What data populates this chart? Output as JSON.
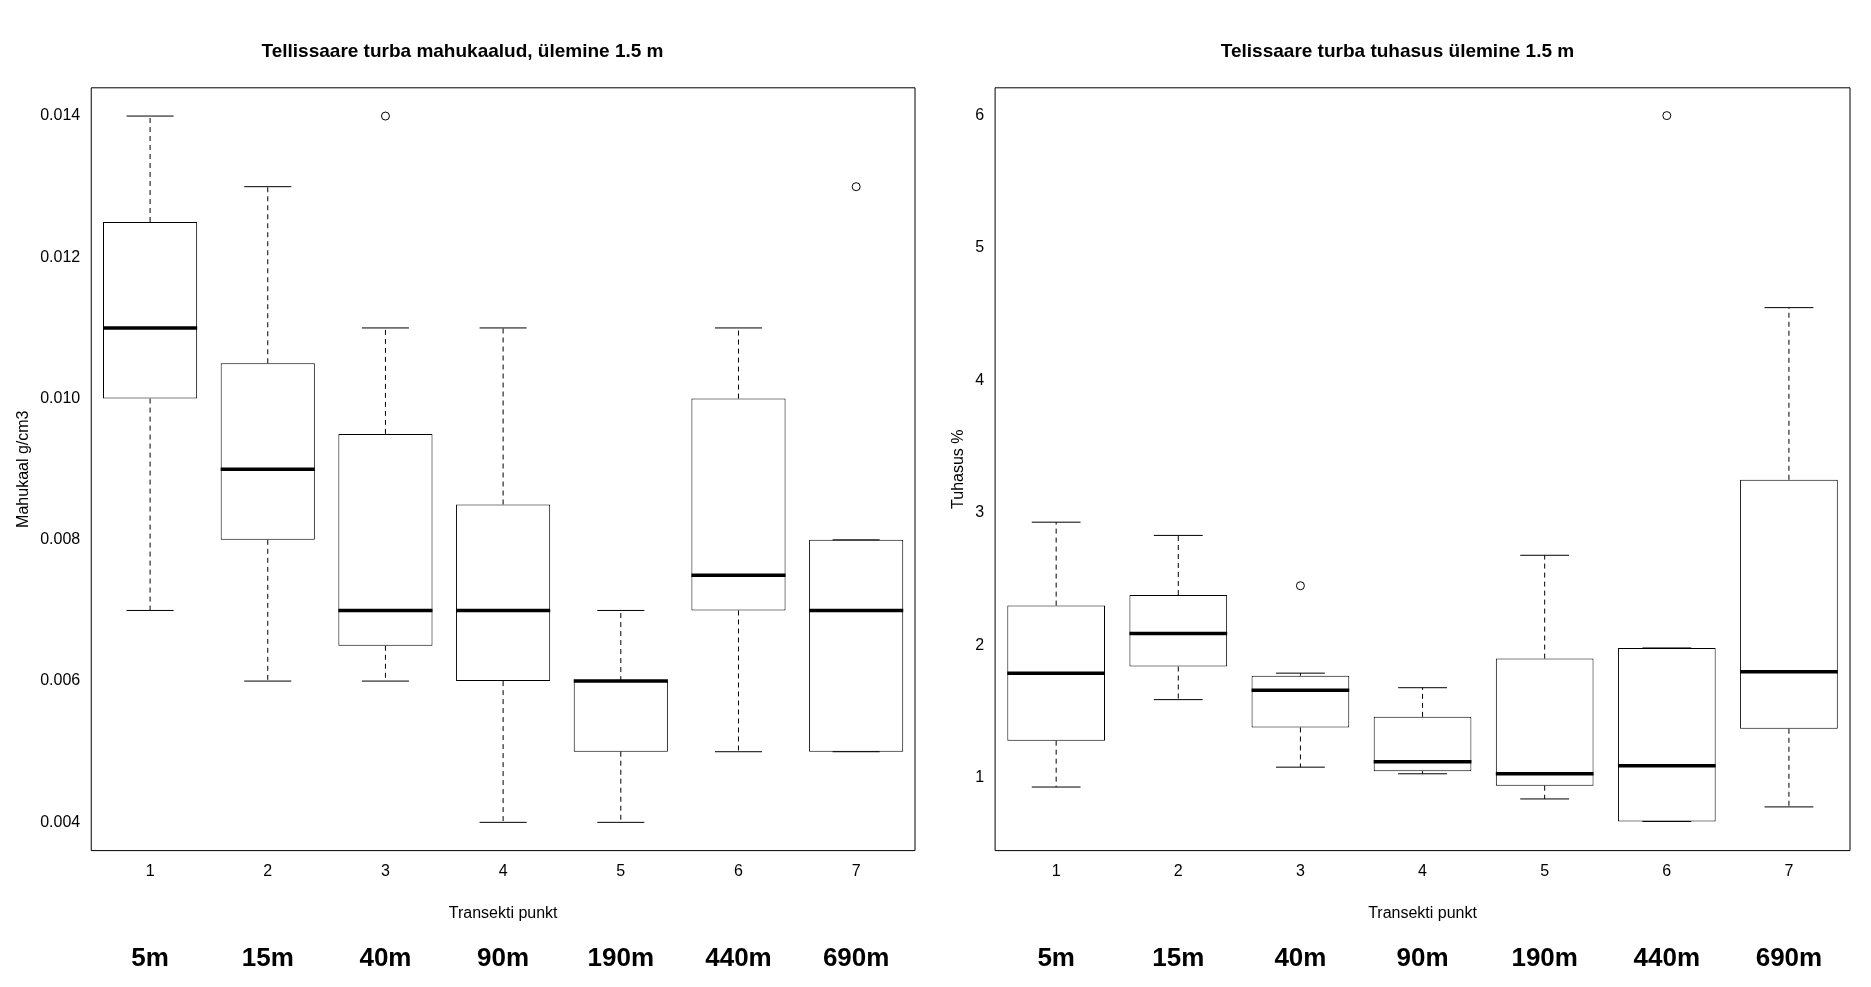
{
  "chart_data": [
    {
      "type": "box",
      "title": "Tellissaare turba mahukaalud, ülemine 1.5 m",
      "xlabel": "Transekti punkt",
      "ylabel": "Mahukaal g/cm3",
      "categories": [
        "1",
        "2",
        "3",
        "4",
        "5",
        "6",
        "7"
      ],
      "boxes": [
        {
          "low": 0.007,
          "q1": 0.01,
          "median": 0.011,
          "q3": 0.0125,
          "high": 0.014
        },
        {
          "low": 0.006,
          "q1": 0.008,
          "median": 0.009,
          "q3": 0.0105,
          "high": 0.013
        },
        {
          "low": 0.006,
          "q1": 0.0065,
          "median": 0.007,
          "q3": 0.0095,
          "high": 0.011,
          "outliers": [
            0.014
          ]
        },
        {
          "low": 0.004,
          "q1": 0.006,
          "median": 0.007,
          "q3": 0.0085,
          "high": 0.011
        },
        {
          "low": 0.004,
          "q1": 0.005,
          "median": 0.006,
          "q3": 0.006,
          "high": 0.007
        },
        {
          "low": 0.005,
          "q1": 0.007,
          "median": 0.0075,
          "q3": 0.01,
          "high": 0.011
        },
        {
          "low": 0.005,
          "q1": 0.005,
          "median": 0.007,
          "q3": 0.008,
          "high": 0.008,
          "outliers": [
            0.013
          ]
        }
      ],
      "ylim": [
        0.0036,
        0.0144
      ],
      "yticks": [
        0.004,
        0.006,
        0.008,
        {
          "value": 0.01,
          "label": "0.010"
        },
        0.012,
        0.014
      ],
      "grid": false,
      "legend": false,
      "annotations": [
        "5m",
        "15m",
        "40m",
        "90m",
        "190m",
        "440m",
        "690m"
      ]
    },
    {
      "type": "box",
      "title": "Telissaare turba tuhasus ülemine 1.5 m",
      "xlabel": "Transekti punkt",
      "ylabel": "Tuhasus %",
      "categories": [
        "1",
        "2",
        "3",
        "4",
        "5",
        "6",
        "7"
      ],
      "boxes": [
        {
          "low": 0.93,
          "q1": 1.28,
          "median": 1.79,
          "q3": 2.3,
          "high": 2.93
        },
        {
          "low": 1.59,
          "q1": 1.84,
          "median": 2.09,
          "q3": 2.38,
          "high": 2.83
        },
        {
          "low": 1.08,
          "q1": 1.38,
          "median": 1.66,
          "q3": 1.77,
          "high": 1.79,
          "outliers": [
            2.45
          ]
        },
        {
          "low": 1.03,
          "q1": 1.05,
          "median": 1.12,
          "q3": 1.46,
          "high": 1.68
        },
        {
          "low": 0.84,
          "q1": 0.94,
          "median": 1.03,
          "q3": 1.9,
          "high": 2.68
        },
        {
          "low": 0.67,
          "q1": 0.67,
          "median": 1.09,
          "q3": 1.98,
          "high": 1.98,
          "outliers": [
            6.0
          ]
        },
        {
          "low": 0.78,
          "q1": 1.37,
          "median": 1.8,
          "q3": 3.25,
          "high": 4.55
        }
      ],
      "ylim": [
        0.45,
        6.21
      ],
      "yticks": [
        1,
        2,
        3,
        4,
        5,
        6
      ],
      "grid": false,
      "legend": false,
      "annotations": [
        "5m",
        "15m",
        "40m",
        "90m",
        "190m",
        "440m",
        "690m"
      ]
    }
  ]
}
